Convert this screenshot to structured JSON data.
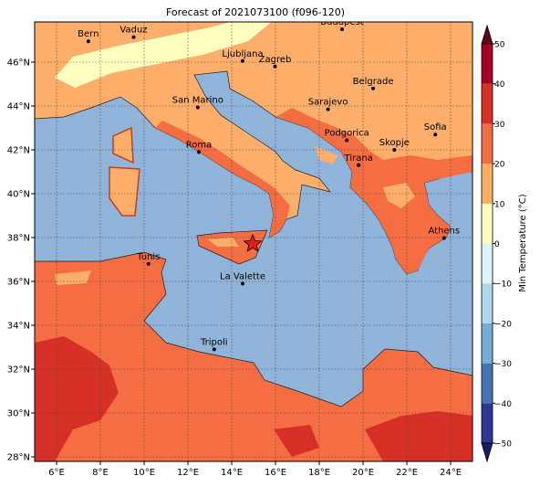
{
  "title": "Forecast of 2021073100 (f096-120)",
  "cities": [
    "Bern",
    "Vaduz",
    "Budapest",
    "Ljubljana",
    "Zagreb",
    "Belgrade",
    "Sarajevo",
    "San Marino",
    "Roma",
    "Podgorica",
    "Skopje",
    "Sofia",
    "Tirana",
    "Athens",
    "Tunis",
    "La Valette",
    "Tripoli"
  ],
  "lon_labels": [
    "6°E",
    "8°E",
    "10°E",
    "12°E",
    "14°E",
    "16°E",
    "18°E",
    "20°E",
    "22°E",
    "24°E"
  ],
  "lat_labels": [
    "28°N",
    "30°N",
    "32°N",
    "34°N",
    "36°N",
    "38°N",
    "40°N",
    "42°N",
    "44°N",
    "46°N"
  ],
  "colorbar": {
    "label": "Min Temperature (°C)",
    "ticks": [
      {
        "value": -50,
        "label": "−50"
      },
      {
        "value": -40,
        "label": "−40"
      },
      {
        "value": -30,
        "label": "−30"
      },
      {
        "value": -20,
        "label": "−20"
      },
      {
        "value": -10,
        "label": "−10"
      },
      0,
      10,
      20,
      30,
      40,
      50
    ],
    "colors": [
      "#313695",
      "#4575b4",
      "#74add1",
      "#abd9e9",
      "#e0f3f8",
      "#ffffbf",
      "#fdae61",
      "#f46d43",
      "#d73027",
      "#a50026"
    ],
    "under_color": "#1a1a6e",
    "over_color": "#67001f"
  }
}
